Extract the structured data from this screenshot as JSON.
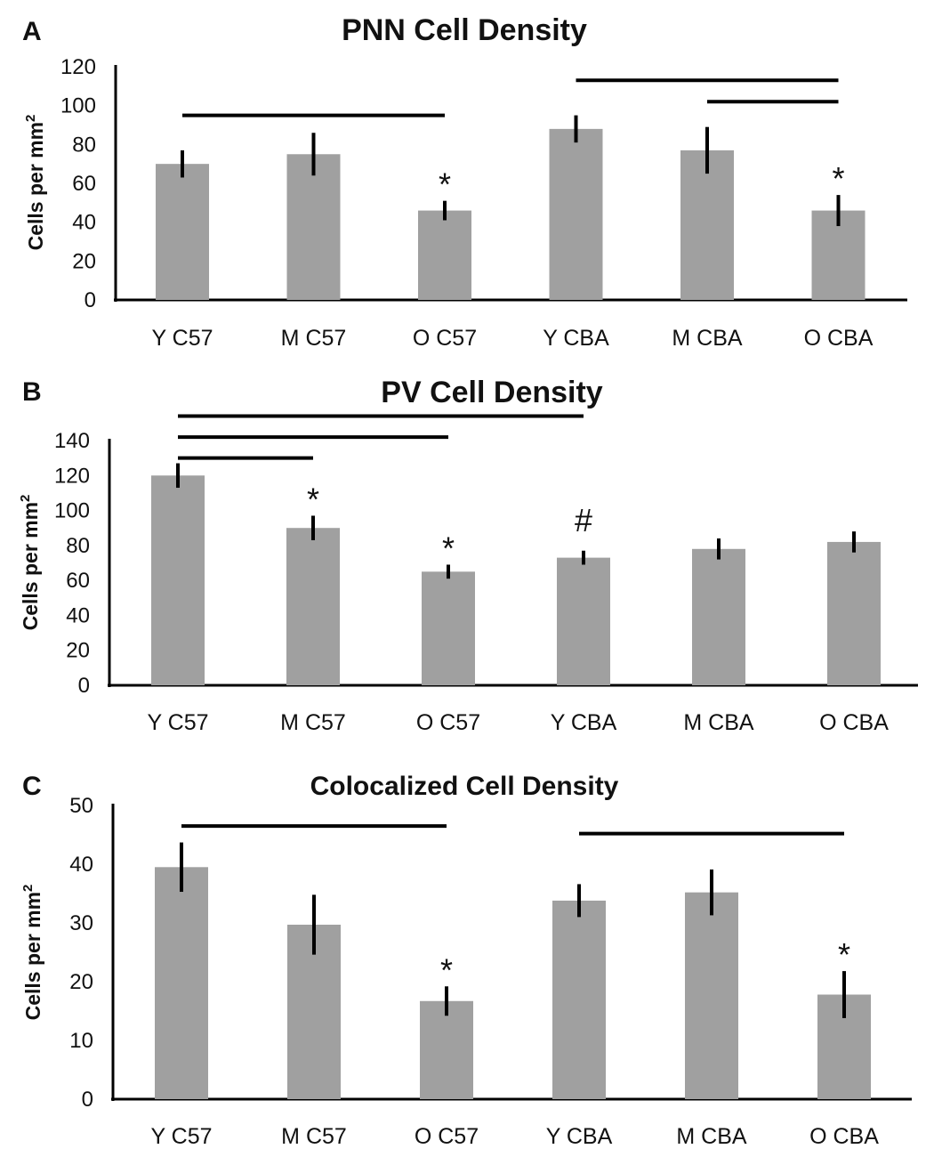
{
  "chart_data": [
    {
      "panel": "A",
      "type": "bar",
      "title": "PNN Cell Density",
      "ylabel": "Cells per mm",
      "ylabel_sup": "2",
      "xlabel": "",
      "categories": [
        "Y C57",
        "M C57",
        "O C57",
        "Y CBA",
        "M CBA",
        "O CBA"
      ],
      "values": [
        70,
        75,
        46,
        88,
        77,
        46
      ],
      "errors": [
        7,
        11,
        5,
        7,
        12,
        8
      ],
      "ylim": [
        0,
        120
      ],
      "yticks": [
        0,
        20,
        40,
        60,
        80,
        100,
        120
      ],
      "bar_color": "#a0a0a0",
      "sig_bars": [
        {
          "from": 0,
          "to": 2,
          "level": 95
        },
        {
          "from": 3,
          "to": 5,
          "level": 113
        },
        {
          "from": 4,
          "to": 5,
          "level": 102
        }
      ],
      "annotations": [
        {
          "index": 2,
          "text": "*"
        },
        {
          "index": 5,
          "text": "*"
        }
      ]
    },
    {
      "panel": "B",
      "type": "bar",
      "title": "PV Cell Density",
      "ylabel": "Cells per mm",
      "ylabel_sup": "2",
      "xlabel": "",
      "categories": [
        "Y C57",
        "M C57",
        "O C57",
        "Y CBA",
        "M CBA",
        "O CBA"
      ],
      "values": [
        120,
        90,
        65,
        73,
        78,
        82
      ],
      "errors": [
        7,
        7,
        4,
        4,
        6,
        6
      ],
      "ylim": [
        0,
        140
      ],
      "yticks": [
        0,
        20,
        40,
        60,
        80,
        100,
        120,
        140
      ],
      "bar_color": "#a0a0a0",
      "sig_bars": [
        {
          "from": 0,
          "to": 3,
          "level": 154
        },
        {
          "from": 0,
          "to": 2,
          "level": 142
        },
        {
          "from": 0,
          "to": 1,
          "level": 130
        }
      ],
      "annotations": [
        {
          "index": 1,
          "text": "*"
        },
        {
          "index": 2,
          "text": "*"
        },
        {
          "index": 3,
          "text": "#"
        }
      ]
    },
    {
      "panel": "C",
      "type": "bar",
      "title": "Colocalized Cell Density",
      "ylabel": "Cells per mm",
      "ylabel_sup": "2",
      "xlabel": "",
      "categories": [
        "Y C57",
        "M C57",
        "O C57",
        "Y CBA",
        "M CBA",
        "O CBA"
      ],
      "values": [
        39.5,
        29.7,
        16.7,
        33.8,
        35.2,
        17.8
      ],
      "errors": [
        4.2,
        5.1,
        2.5,
        2.8,
        3.9,
        4
      ],
      "ylim": [
        0,
        50
      ],
      "yticks": [
        0,
        10,
        20,
        30,
        40,
        50
      ],
      "bar_color": "#a0a0a0",
      "sig_bars": [
        {
          "from": 0,
          "to": 2,
          "level": 46.5
        },
        {
          "from": 3,
          "to": 5,
          "level": 45.2
        }
      ],
      "annotations": [
        {
          "index": 2,
          "text": "*"
        },
        {
          "index": 5,
          "text": "*"
        }
      ]
    }
  ]
}
